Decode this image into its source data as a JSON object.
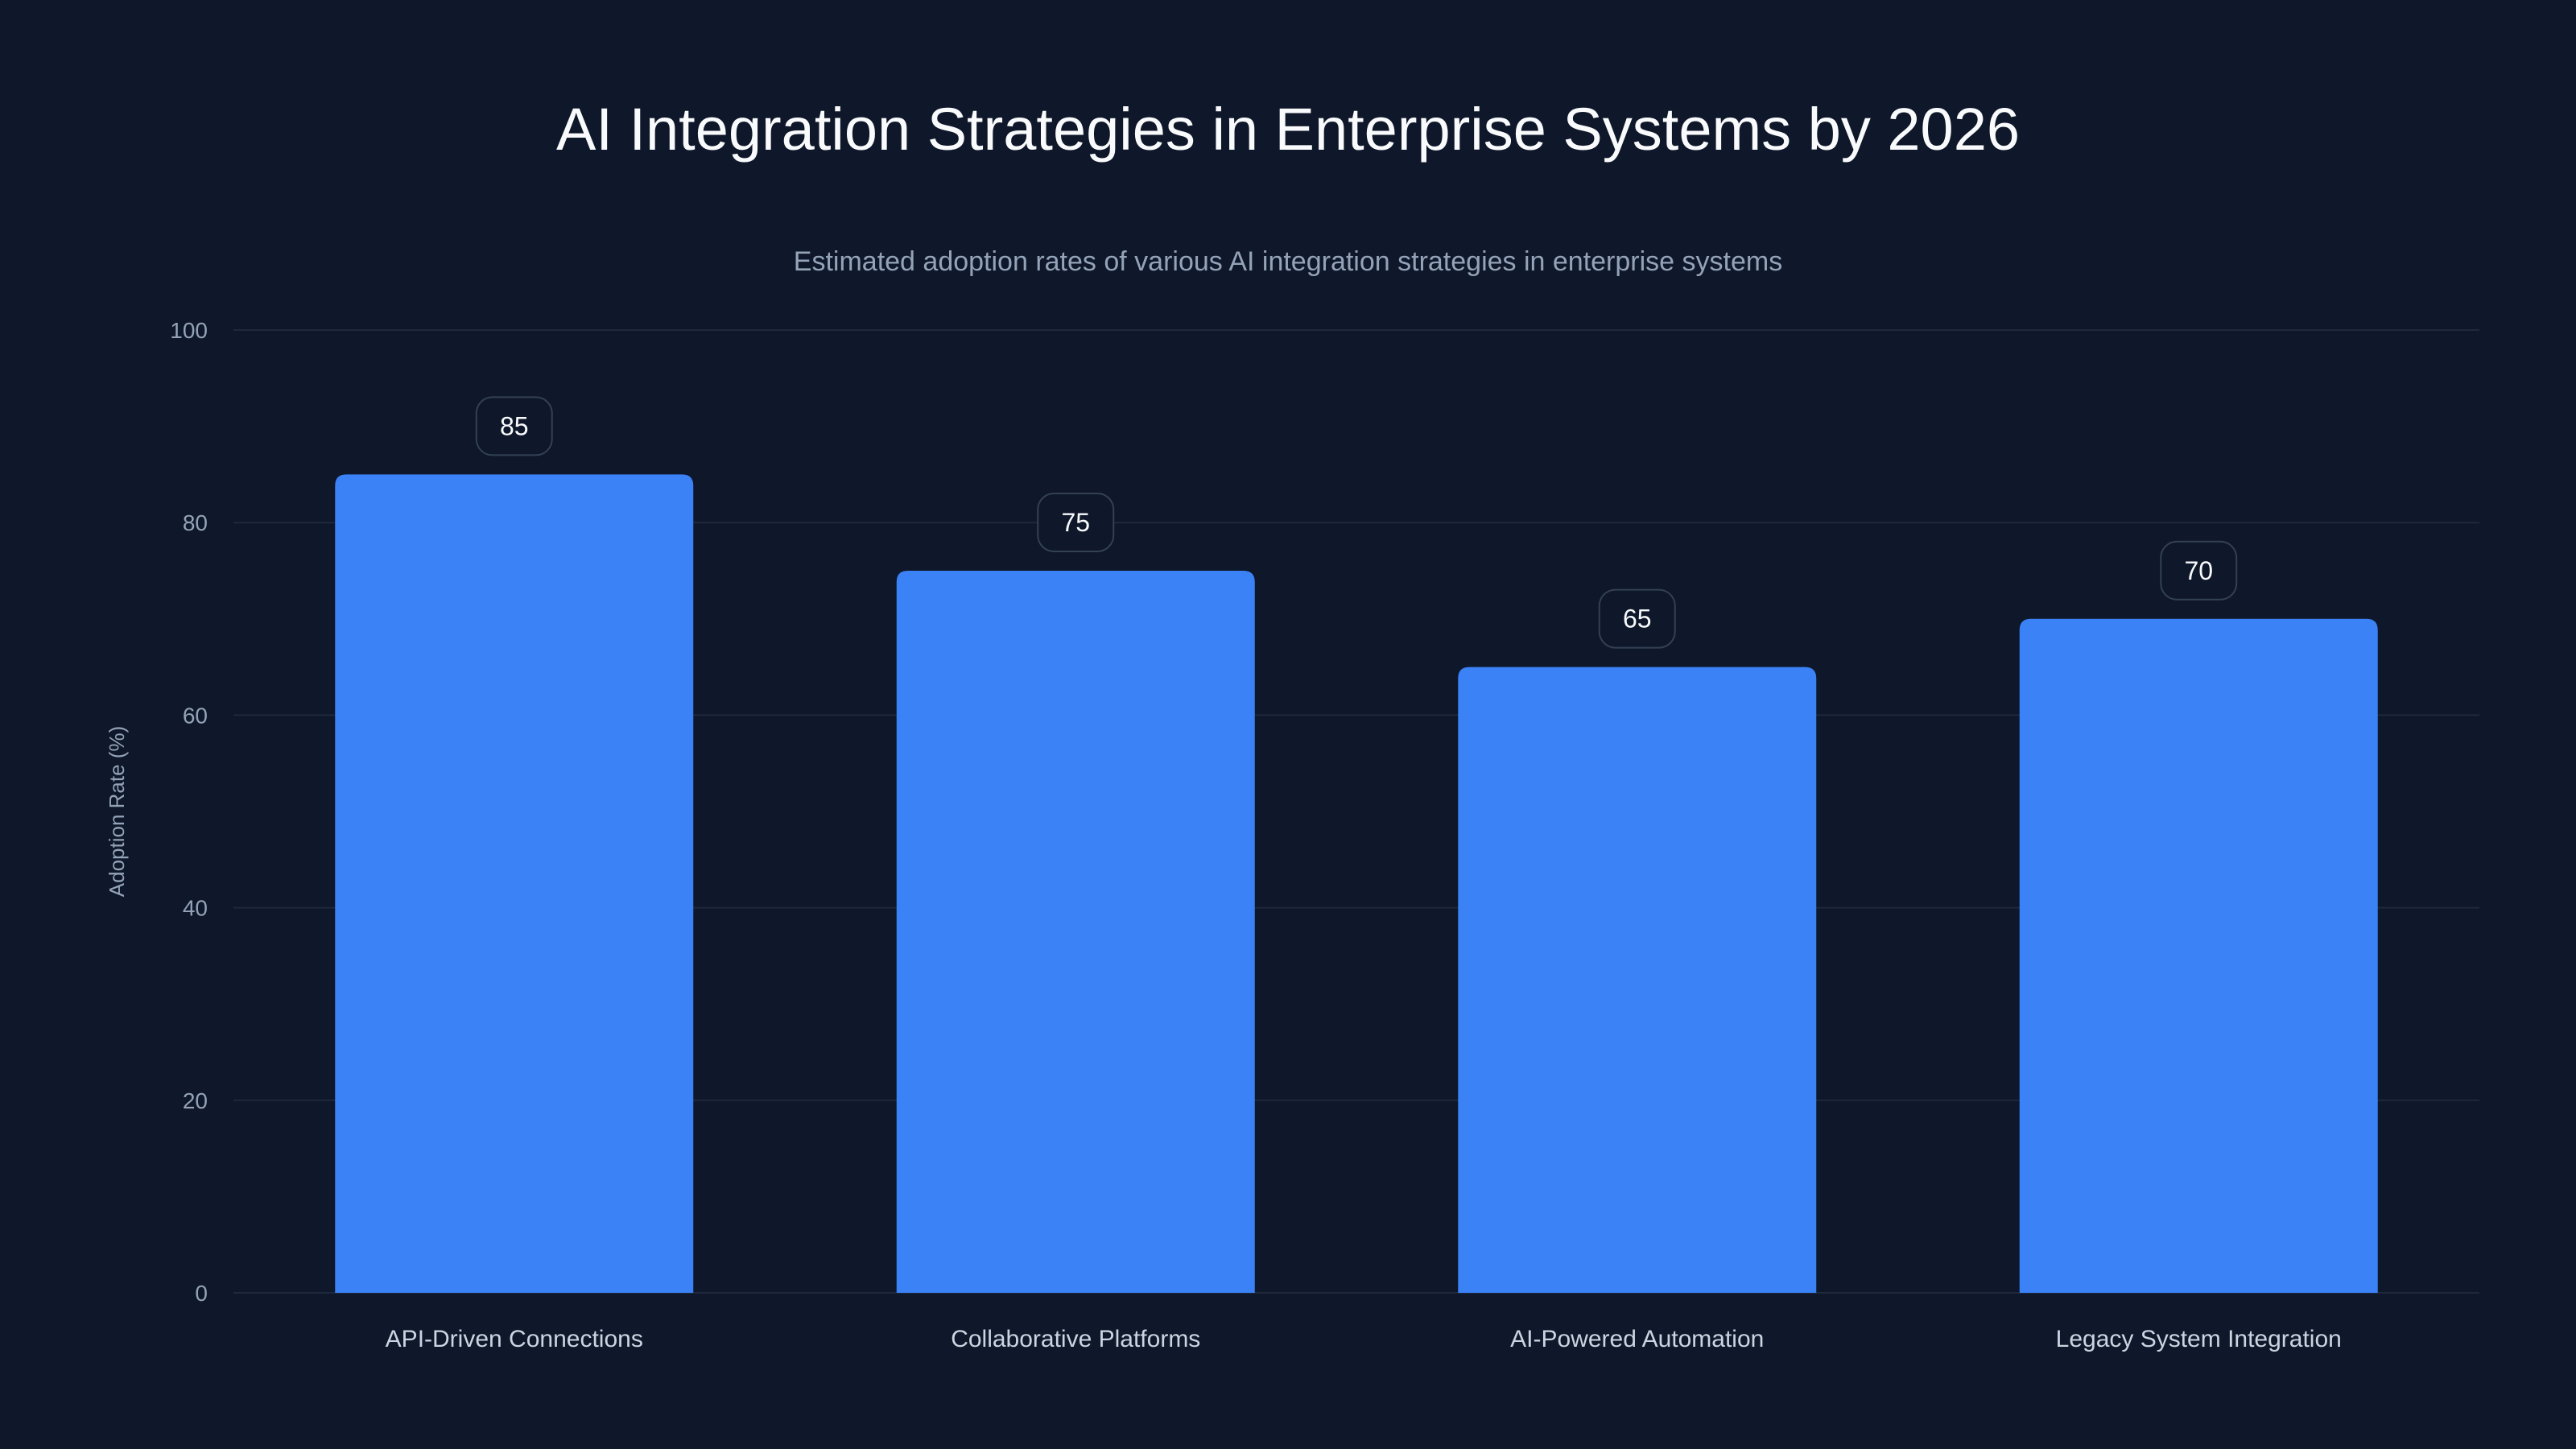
{
  "chart_data": {
    "type": "bar",
    "title": "AI Integration Strategies in Enterprise Systems by 2026",
    "subtitle": "Estimated adoption rates of various AI integration strategies in enterprise systems",
    "categories": [
      "API-Driven Connections",
      "Collaborative Platforms",
      "AI-Powered Automation",
      "Legacy System Integration"
    ],
    "values": [
      85,
      75,
      65,
      70
    ],
    "data_labels": [
      "85",
      "75",
      "65",
      "70"
    ],
    "xlabel": "",
    "ylabel": "Adoption Rate (%)",
    "ylim": [
      0,
      100
    ],
    "yticks": [
      "0",
      "20",
      "40",
      "60",
      "80",
      "100"
    ],
    "grid": true,
    "colors": {
      "bar": "#3b82f6",
      "background": "#0f172a",
      "grid": "#1e293b",
      "tick": "#94a3b8"
    }
  }
}
